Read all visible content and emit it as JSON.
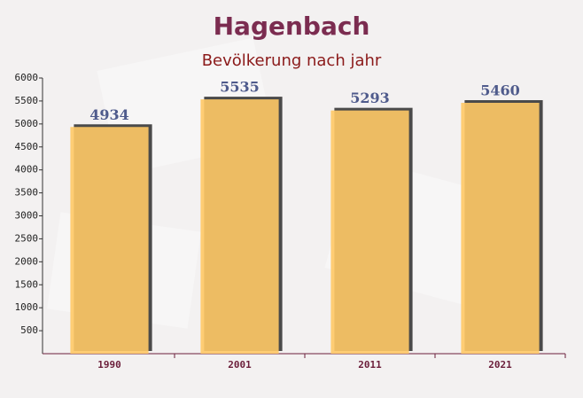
{
  "chart_data": {
    "type": "bar",
    "title": "Hagenbach",
    "subtitle": "Bevölkerung nach jahr",
    "categories": [
      "1990",
      "2001",
      "2011",
      "2021"
    ],
    "values": [
      4934,
      5535,
      5293,
      5460
    ],
    "color": "#ffc966",
    "ylim": [
      0,
      6000
    ],
    "yticks": [
      500,
      1000,
      1500,
      2000,
      2500,
      3000,
      3500,
      4000,
      4500,
      5000,
      5500,
      6000
    ]
  }
}
